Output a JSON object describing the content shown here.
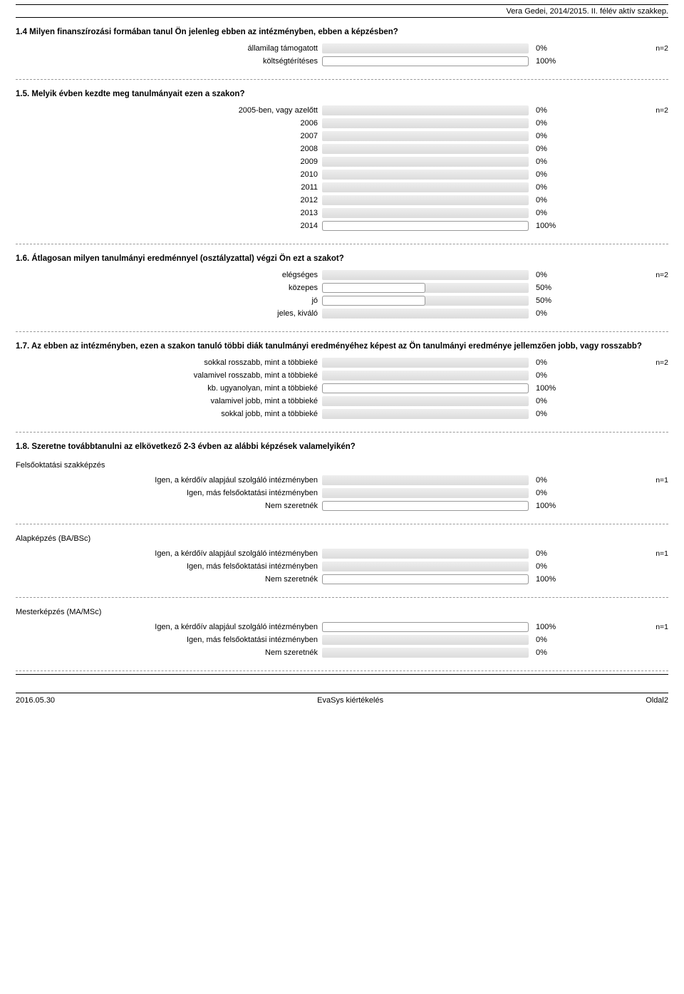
{
  "header": "Vera Gedei, 2014/2015. II. félév aktív szakkep.",
  "colors": {
    "track_bg_top": "#eeeeee",
    "track_bg_bottom": "#dcdcdc",
    "fill_bg": "#ffffff",
    "fill_border": "#999999",
    "sep": "#999999"
  },
  "questions": [
    {
      "title": "1.4 Milyen finanszírozási formában tanul Ön jelenleg ebben az intézményben, ebben a képzésben?",
      "note": "n=2",
      "rows": [
        {
          "label": "államilag támogatott",
          "pct": 0
        },
        {
          "label": "költségtérítéses",
          "pct": 100
        }
      ]
    },
    {
      "title": "1.5. Melyik évben kezdte meg tanulmányait ezen a szakon?",
      "note": "n=2",
      "rows": [
        {
          "label": "2005-ben, vagy azelőtt",
          "pct": 0
        },
        {
          "label": "2006",
          "pct": 0
        },
        {
          "label": "2007",
          "pct": 0
        },
        {
          "label": "2008",
          "pct": 0
        },
        {
          "label": "2009",
          "pct": 0
        },
        {
          "label": "2010",
          "pct": 0
        },
        {
          "label": "2011",
          "pct": 0
        },
        {
          "label": "2012",
          "pct": 0
        },
        {
          "label": "2013",
          "pct": 0
        },
        {
          "label": "2014",
          "pct": 100
        }
      ]
    },
    {
      "title": "1.6. Átlagosan milyen tanulmányi eredménnyel (osztályzattal) végzi Ön ezt a szakot?",
      "note": "n=2",
      "rows": [
        {
          "label": "elégséges",
          "pct": 0
        },
        {
          "label": "közepes",
          "pct": 50
        },
        {
          "label": "jó",
          "pct": 50
        },
        {
          "label": "jeles, kiváló",
          "pct": 0
        }
      ]
    },
    {
      "title": "1.7. Az ebben az intézményben, ezen a szakon tanuló többi diák tanulmányi eredményéhez képest az Ön tanulmányi eredménye jellemzően jobb, vagy rosszabb?",
      "note": "n=2",
      "rows": [
        {
          "label": "sokkal rosszabb, mint a többieké",
          "pct": 0
        },
        {
          "label": "valamivel rosszabb, mint a többieké",
          "pct": 0
        },
        {
          "label": "kb. ugyanolyan, mint a többieké",
          "pct": 100
        },
        {
          "label": "valamivel jobb, mint a többieké",
          "pct": 0
        },
        {
          "label": "sokkal jobb, mint a többieké",
          "pct": 0
        }
      ]
    },
    {
      "title": "1.8. Szeretne továbbtanulni az elkövetkező 2-3 évben az alábbi képzések valamelyikén?",
      "groups": [
        {
          "subtitle": "Felsőoktatási szakképzés",
          "note": "n=1",
          "rows": [
            {
              "label": "Igen, a kérdőív alapjául szolgáló intézményben",
              "pct": 0
            },
            {
              "label": "Igen, más felsőoktatási intézményben",
              "pct": 0
            },
            {
              "label": "Nem szeretnék",
              "pct": 100
            }
          ]
        },
        {
          "subtitle": "Alapképzés (BA/BSc)",
          "note": "n=1",
          "rows": [
            {
              "label": "Igen, a kérdőív alapjául szolgáló intézményben",
              "pct": 0
            },
            {
              "label": "Igen, más felsőoktatási intézményben",
              "pct": 0
            },
            {
              "label": "Nem szeretnék",
              "pct": 100
            }
          ]
        },
        {
          "subtitle": "Mesterképzés (MA/MSc)",
          "note": "n=1",
          "rows": [
            {
              "label": "Igen, a kérdőív alapjául szolgáló intézményben",
              "pct": 100
            },
            {
              "label": "Igen, más felsőoktatási intézményben",
              "pct": 0
            },
            {
              "label": "Nem szeretnék",
              "pct": 0
            }
          ]
        }
      ]
    }
  ],
  "footer": {
    "left": "2016.05.30",
    "center": "EvaSys kiértékelés",
    "right": "Oldal2"
  }
}
